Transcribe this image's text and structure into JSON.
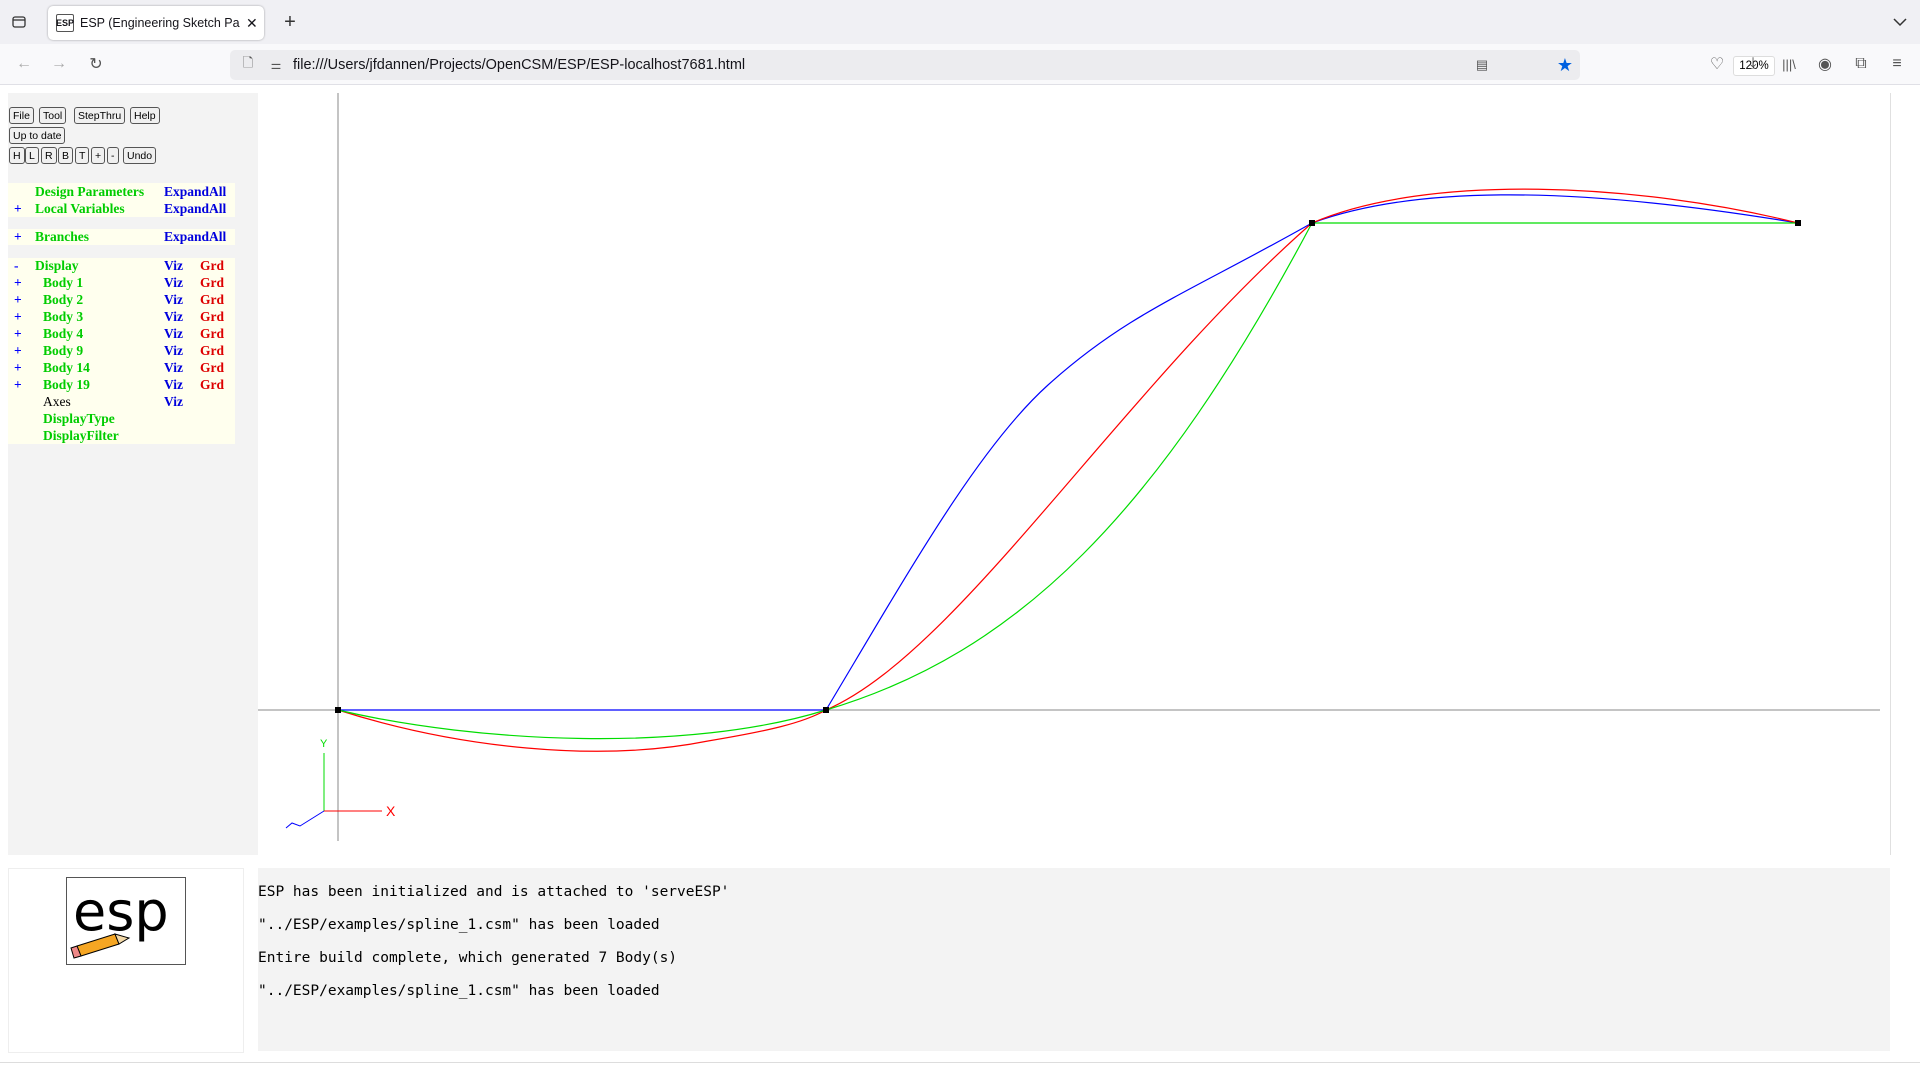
{
  "browser": {
    "tab_title": "ESP (Engineering Sketch Pad, V",
    "tab_favicon": "esp-favicon",
    "url": "file:///Users/jfdannen/Projects/OpenCSM/ESP/ESP-localhost7681.html",
    "zoom": "120%"
  },
  "toolbar": {
    "row1": [
      "File",
      "Tool",
      "StepThru",
      "Help"
    ],
    "status": "Up to date",
    "row3": [
      "H",
      "L",
      "R",
      "B",
      "T",
      "+",
      "-",
      "Undo"
    ]
  },
  "tree": {
    "design_parameters": {
      "label": "Design Parameters",
      "action": "ExpandAll",
      "sign": ""
    },
    "local_variables": {
      "label": "Local Variables",
      "action": "ExpandAll",
      "sign": "+"
    },
    "branches": {
      "label": "Branches",
      "action": "ExpandAll",
      "sign": "+"
    },
    "display": {
      "label": "Display",
      "viz": "Viz",
      "grd": "Grd",
      "sign": "-"
    },
    "bodies": [
      {
        "sign": "+",
        "label": "Body 1",
        "viz": "Viz",
        "grd": "Grd"
      },
      {
        "sign": "+",
        "label": "Body 2",
        "viz": "Viz",
        "grd": "Grd"
      },
      {
        "sign": "+",
        "label": "Body 3",
        "viz": "Viz",
        "grd": "Grd"
      },
      {
        "sign": "+",
        "label": "Body 4",
        "viz": "Viz",
        "grd": "Grd"
      },
      {
        "sign": "+",
        "label": "Body 9",
        "viz": "Viz",
        "grd": "Grd"
      },
      {
        "sign": "+",
        "label": "Body 14",
        "viz": "Viz",
        "grd": "Grd"
      },
      {
        "sign": "+",
        "label": "Body 19",
        "viz": "Viz",
        "grd": "Grd"
      }
    ],
    "axes": {
      "label": "Axes",
      "viz": "Viz"
    },
    "display_type": "DisplayType",
    "display_filter": "DisplayFilter"
  },
  "graphics": {
    "curve_colors": {
      "blue": "#0000ff",
      "red": "#ff0000",
      "green": "#00dd00"
    },
    "axis_labels": {
      "y": "Y",
      "x": "X"
    }
  },
  "logo": {
    "text": "esp"
  },
  "messages": [
    "ESP has been initialized and is attached to 'serveESP'",
    "\"../ESP/examples/spline_1.csm\" has been loaded",
    "Entire build complete, which generated 7 Body(s)",
    "\"../ESP/examples/spline_1.csm\" has been loaded"
  ]
}
